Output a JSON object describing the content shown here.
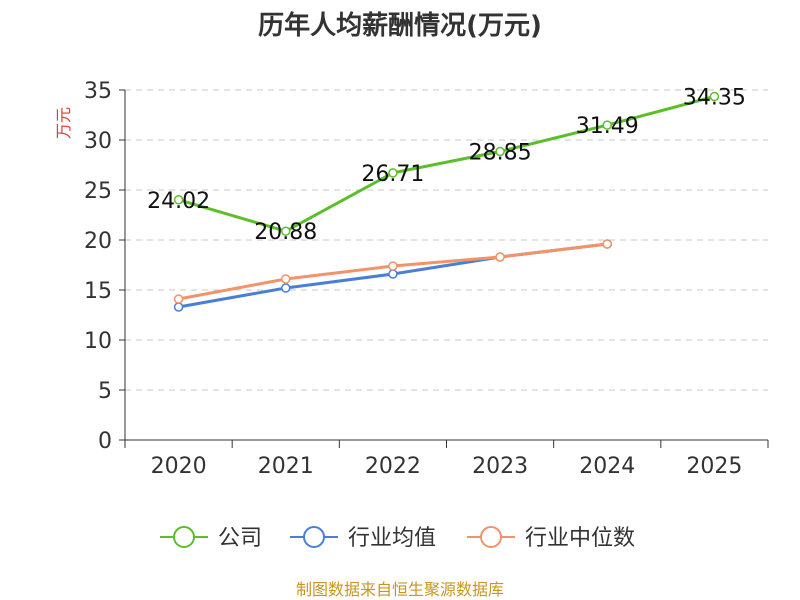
{
  "chart_data": {
    "type": "line",
    "title": "历年人均薪酬情况(万元)",
    "ylabel": "万元",
    "xlabel": "",
    "categories": [
      "2020",
      "2021",
      "2022",
      "2023",
      "2024",
      "2025"
    ],
    "ylim": [
      0,
      35
    ],
    "yticks": [
      0,
      5,
      10,
      15,
      20,
      25,
      30,
      35
    ],
    "grid": true,
    "legend_position": "bottom",
    "series": [
      {
        "name": "公司",
        "color": "#5cbf2a",
        "values": [
          24.02,
          20.88,
          26.71,
          28.85,
          31.49,
          34.35
        ],
        "labels": [
          "24.02",
          "20.88",
          "26.71",
          "28.85",
          "31.49",
          "34.35"
        ]
      },
      {
        "name": "行业均值",
        "color": "#4a7fd9",
        "values": [
          13.3,
          15.2,
          16.6,
          18.3,
          19.6,
          null
        ]
      },
      {
        "name": "行业中位数",
        "color": "#f2936a",
        "values": [
          14.1,
          16.1,
          17.4,
          18.3,
          19.6,
          null
        ]
      }
    ],
    "source": "制图数据来自恒生聚源数据库"
  }
}
